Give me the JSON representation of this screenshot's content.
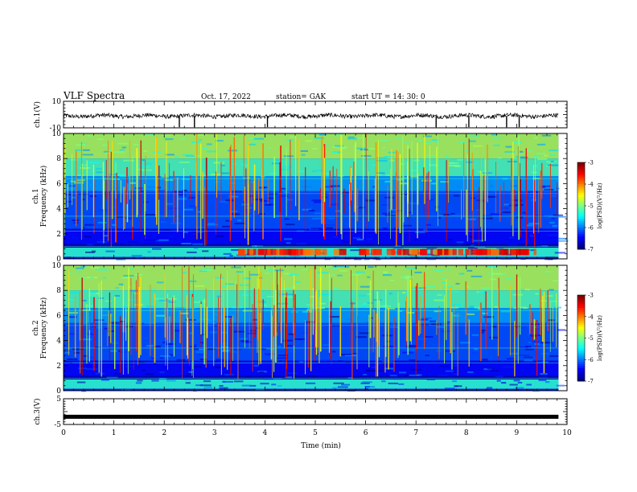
{
  "header": {
    "title": "VLF Spectra",
    "date": "Oct. 17, 2022",
    "station": "station= GAK",
    "start": "start  UT  =   14: 30: 0"
  },
  "chart_data": [
    {
      "type": "line",
      "name": "ch1-waveform",
      "ylabel": "ch.1(V)",
      "ylim": [
        -10,
        10
      ],
      "yticklabels": [
        "10",
        "-10"
      ],
      "xlim": [
        0,
        10
      ],
      "data_extent_min": 9.83,
      "baseline": -1,
      "spike_times_min": [
        2.3,
        2.6,
        4.05,
        7.4,
        8.05,
        8.8,
        9.05
      ]
    },
    {
      "type": "heatmap",
      "name": "ch1-spectrogram",
      "ylabel": "ch.1\nFrequency (kHz)",
      "ylim": [
        0,
        10
      ],
      "yticklabels": [
        "0",
        "2",
        "4",
        "6",
        "8",
        "10"
      ],
      "xlim": [
        0,
        10
      ],
      "data_extent_min": 9.83,
      "colorbar": {
        "label": "log(PSD)(V²/Hz)",
        "range": [
          -7,
          -3
        ],
        "ticklabels": [
          "-3",
          "-4",
          "-5",
          "-6",
          "-7"
        ]
      },
      "strong_band_khz": [
        0.3,
        0.8
      ]
    },
    {
      "type": "heatmap",
      "name": "ch2-spectrogram",
      "ylabel": "ch.2\nFrequency (kHz)",
      "ylim": [
        0,
        10
      ],
      "yticklabels": [
        "0",
        "2",
        "4",
        "6",
        "8",
        "10"
      ],
      "xlim": [
        0,
        10
      ],
      "data_extent_min": 9.83,
      "colorbar": {
        "label": "log(PSD)(V²/Hz)",
        "range": [
          -7,
          -3
        ],
        "ticklabels": [
          "-3",
          "-4",
          "-5",
          "-6",
          "-7"
        ]
      }
    },
    {
      "type": "line",
      "name": "ch3-waveform",
      "ylabel": "ch.3(V)",
      "ylim": [
        -5,
        5
      ],
      "yticklabels": [
        "5",
        "-5"
      ],
      "xlim": [
        0,
        10
      ],
      "data_extent_min": 9.83,
      "level_v": -2
    }
  ],
  "xaxis": {
    "label": "Time  (min)",
    "ticklabels": [
      "0",
      "1",
      "2",
      "3",
      "4",
      "5",
      "6",
      "7",
      "8",
      "9",
      "10"
    ]
  },
  "colors": {
    "cmap": [
      "#00007f",
      "#0000ff",
      "#007fff",
      "#00ffff",
      "#7fff7f",
      "#ffff00",
      "#ff7f00",
      "#ff0000",
      "#7f0000"
    ]
  }
}
